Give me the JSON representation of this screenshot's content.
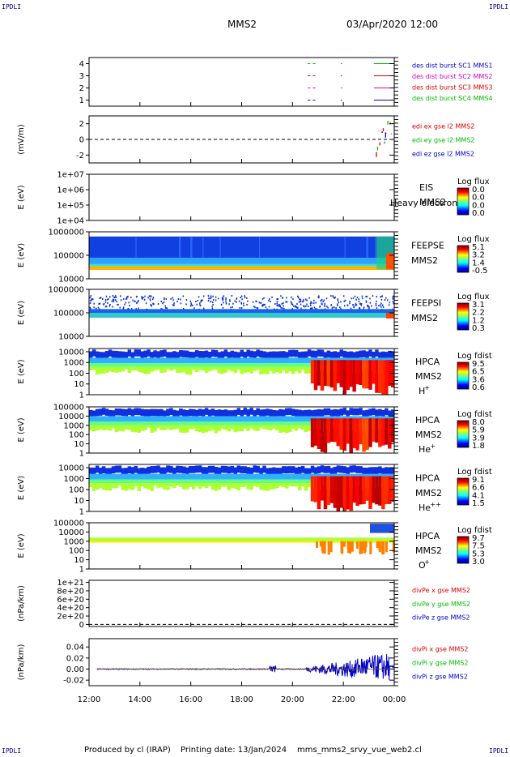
{
  "header": {
    "probe": "MMS2",
    "datetime": "03/Apr/2020 12:00"
  },
  "corners": {
    "tl": "IPDLI",
    "tr": "IPDLI",
    "bl": "IPDLI",
    "br": "IPDLI"
  },
  "footer": {
    "produced": "Produced by cl (IRAP)",
    "printing": "Printing date: 13/Jan/2024",
    "file": "mms_mms2_srvy_vue_web2.cl"
  },
  "time_axis": {
    "ticks": [
      "12:00",
      "14:00",
      "16:00",
      "18:00",
      "20:00",
      "22:00",
      "00:00"
    ],
    "range_hours": [
      12,
      24
    ]
  },
  "chart_data": [
    {
      "id": "dist",
      "type": "line",
      "y_ticks": [
        "1",
        "2",
        "3",
        "4"
      ],
      "ylim": [
        0.5,
        4.5
      ],
      "ylabel": "",
      "legend": [
        {
          "name": "des dist burst SC1 MMS1",
          "color": "#0000cc"
        },
        {
          "name": "des dist burst SC2 MMS2",
          "color": "#cc00cc"
        },
        {
          "name": "des dist burst SC3 MMS3",
          "color": "#dd0000"
        },
        {
          "name": "des dist burst SC4 MMS4",
          "color": "#00bb00"
        }
      ],
      "segments": [
        {
          "y": 4,
          "color": "#00bb00",
          "x": [
            [
              20.6,
              20.7
            ],
            [
              20.8,
              20.9
            ],
            [
              21.9,
              21.95
            ],
            [
              23.2,
              23.9
            ]
          ]
        },
        {
          "y": 3,
          "color": "#dd0000",
          "x": [
            [
              20.6,
              20.7
            ],
            [
              20.8,
              20.9
            ],
            [
              21.9,
              21.95
            ],
            [
              23.2,
              23.9
            ]
          ]
        },
        {
          "y": 2,
          "color": "#cc00cc",
          "x": [
            [
              20.6,
              20.7
            ],
            [
              20.8,
              20.9
            ],
            [
              21.9,
              21.95
            ],
            [
              23.2,
              23.9
            ]
          ]
        },
        {
          "y": 1,
          "color": "#0000cc",
          "x": [
            [
              20.6,
              20.7
            ],
            [
              20.8,
              20.9
            ],
            [
              21.9,
              21.95
            ],
            [
              23.2,
              23.9
            ]
          ]
        }
      ]
    },
    {
      "id": "edi",
      "type": "line",
      "y_ticks": [
        "-2",
        "0",
        "2"
      ],
      "ylim": [
        -3,
        3
      ],
      "ylabel": "(mV/m)",
      "legend": [
        {
          "name": "edi ex gse l2 MMS2",
          "color": "#dd0000"
        },
        {
          "name": "edi ey gse l2 MMS2",
          "color": "#00bb00"
        },
        {
          "name": "edi ez gse l2 MMS2",
          "color": "#0000cc"
        }
      ],
      "reference_y": 0
    },
    {
      "id": "eis",
      "type": "heatmap",
      "y_ticks": [
        "1e+04",
        "1e+05",
        "1e+06",
        "1e+07"
      ],
      "ylim": [
        4,
        7
      ],
      "ylabel": "E (eV)",
      "instrument": "EIS",
      "probe": "MMS2",
      "overlay": "Heavy electron to",
      "cbar": {
        "title": "Log flux",
        "ticks": [
          "0.0",
          "0.0",
          "0.0",
          "0.0"
        ]
      }
    },
    {
      "id": "feepse",
      "type": "heatmap",
      "y_ticks": [
        "10000",
        "100000",
        "1000000"
      ],
      "ylim": [
        4,
        6
      ],
      "ylabel": "E (eV)",
      "instrument": "FEEPSE",
      "probe": "MMS2",
      "cbar": {
        "title": "Log flux",
        "ticks": [
          "5.1",
          "3.2",
          "1.4",
          "-0.5"
        ]
      }
    },
    {
      "id": "feepsi",
      "type": "heatmap",
      "y_ticks": [
        "10000",
        "100000",
        "1000000"
      ],
      "ylim": [
        4,
        6
      ],
      "ylabel": "E (eV)",
      "instrument": "FEEPSI",
      "probe": "MMS2",
      "cbar": {
        "title": "Log flux",
        "ticks": [
          "3.1",
          "2.2",
          "1.2",
          "0.3"
        ]
      }
    },
    {
      "id": "hpca_h",
      "type": "heatmap",
      "y_ticks": [
        "1",
        "10",
        "100",
        "1000",
        "10000"
      ],
      "ylim": [
        0,
        4.3
      ],
      "ylabel": "E (eV)",
      "instrument": "HPCA",
      "probe": "MMS2",
      "species": "H",
      "charge": "+",
      "cbar": {
        "title": "Log fdist",
        "ticks": [
          "9.5",
          "6.5",
          "3.6",
          "0.6"
        ]
      }
    },
    {
      "id": "hpca_he",
      "type": "heatmap",
      "y_ticks": [
        "1",
        "10",
        "100",
        "1000",
        "10000",
        "100000"
      ],
      "ylim": [
        0,
        5
      ],
      "ylabel": "E (eV)",
      "instrument": "HPCA",
      "probe": "MMS2",
      "species": "He",
      "charge": "+",
      "cbar": {
        "title": "Log fdist",
        "ticks": [
          "8.0",
          "5.9",
          "3.9",
          "1.8"
        ]
      }
    },
    {
      "id": "hpca_hepp",
      "type": "heatmap",
      "y_ticks": [
        "1",
        "10",
        "100",
        "1000",
        "10000"
      ],
      "ylim": [
        0,
        4.3
      ],
      "ylabel": "E (eV)",
      "instrument": "HPCA",
      "probe": "MMS2",
      "species": "He",
      "charge": "++",
      "cbar": {
        "title": "Log fdist",
        "ticks": [
          "9.1",
          "6.6",
          "4.1",
          "1.5"
        ]
      }
    },
    {
      "id": "hpca_o",
      "type": "heatmap",
      "y_ticks": [
        "1",
        "10",
        "100",
        "1000",
        "10000",
        "100000"
      ],
      "ylim": [
        0,
        5
      ],
      "ylabel": "E (eV)",
      "instrument": "HPCA",
      "probe": "MMS2",
      "species": "O",
      "charge": "+",
      "cbar": {
        "title": "Log fdist",
        "ticks": [
          "9.7",
          "7.5",
          "5.3",
          "3.0"
        ]
      }
    },
    {
      "id": "divpe",
      "type": "line",
      "y_ticks": [
        "0",
        "2e+20",
        "4e+20",
        "6e+20",
        "8e+20",
        "1e+21"
      ],
      "ylim": [
        -5e+19,
        1.05e+21
      ],
      "ylabel": "(nPa/km)",
      "legend": [
        {
          "name": "divPe x gse MMS2",
          "color": "#dd0000"
        },
        {
          "name": "divPe y gse MMS2",
          "color": "#00bb00"
        },
        {
          "name": "divPe z gse MMS2",
          "color": "#0000cc"
        }
      ],
      "reference_y": 0
    },
    {
      "id": "divpi",
      "type": "line",
      "y_ticks": [
        "-0.02",
        "0.00",
        "0.02",
        "0.04"
      ],
      "ylim": [
        -0.03,
        0.055
      ],
      "ylabel": "(nPa/km)",
      "legend": [
        {
          "name": "divPi x gse MMS2",
          "color": "#dd0000"
        },
        {
          "name": "divPi y gse MMS2",
          "color": "#00bb00"
        },
        {
          "name": "divPi z gse MMS2",
          "color": "#0000cc"
        }
      ]
    }
  ]
}
